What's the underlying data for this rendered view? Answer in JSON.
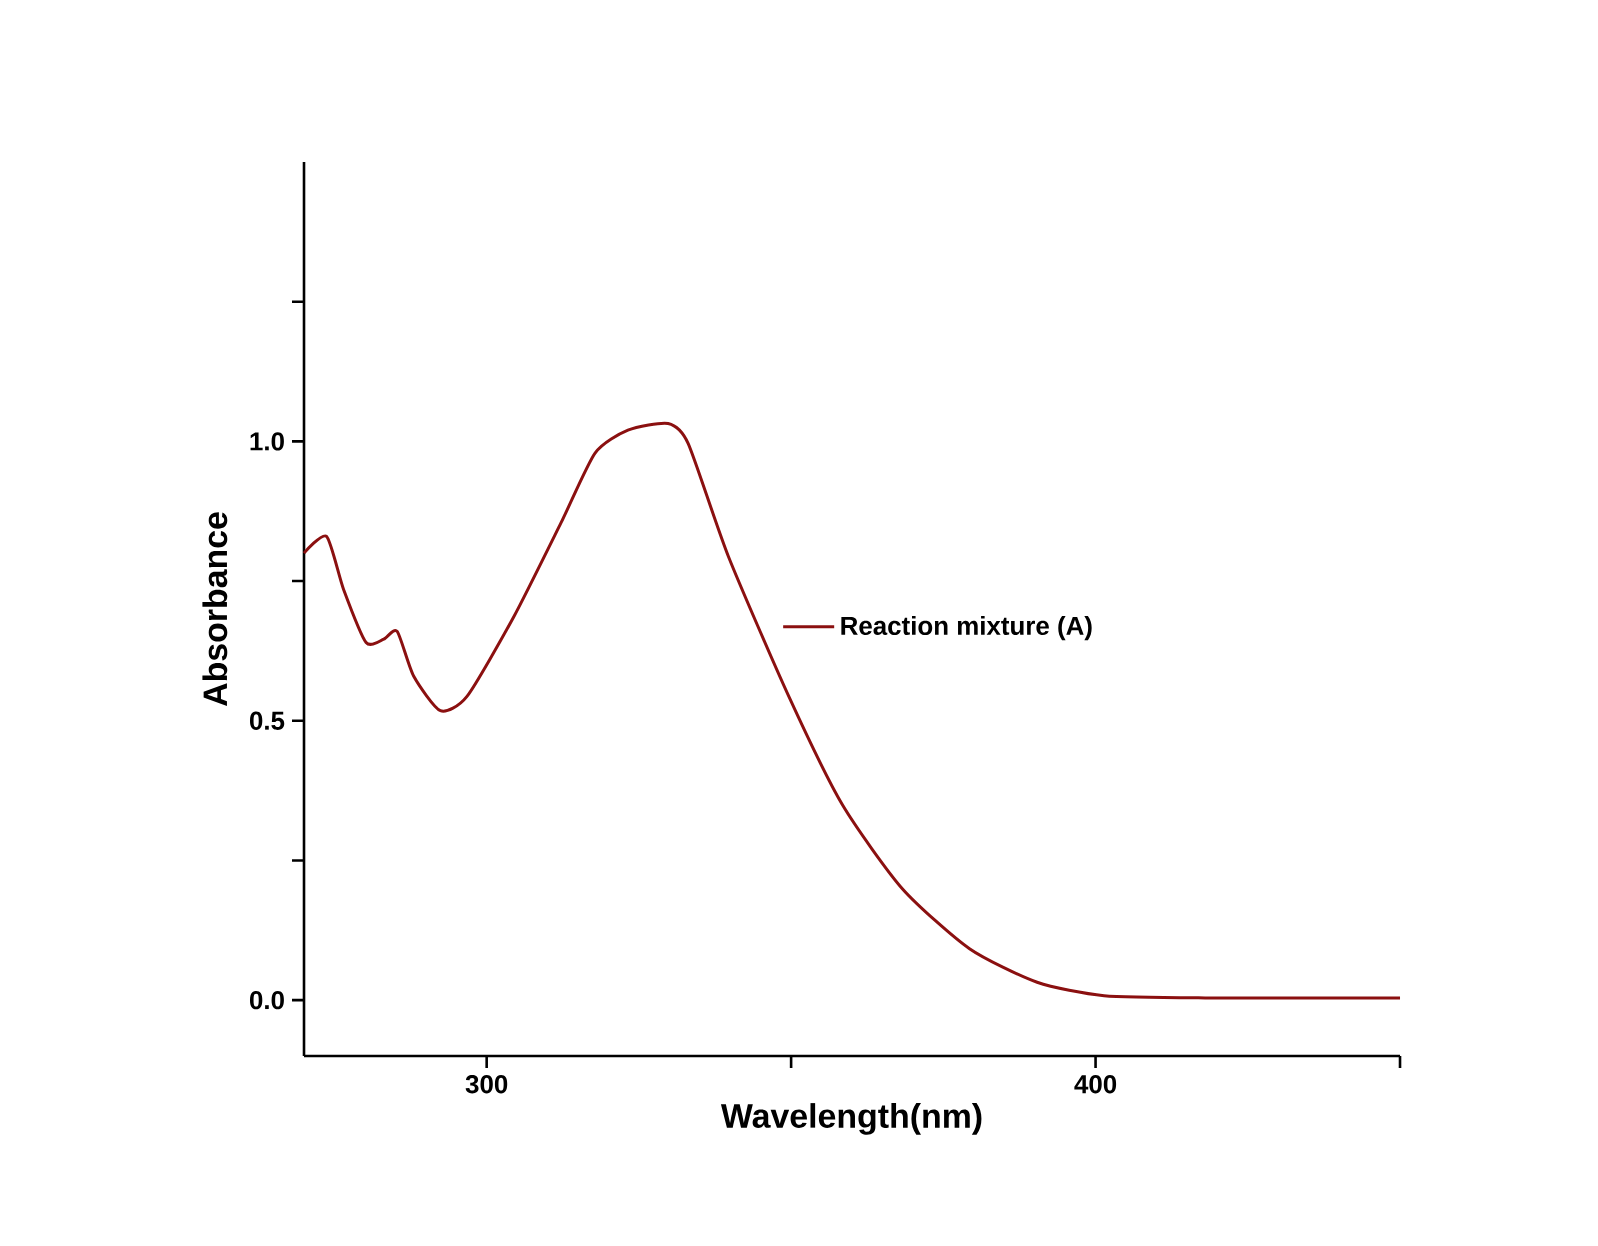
{
  "chart_data": {
    "type": "line",
    "xlabel": "Wavelength(nm)",
    "ylabel": "Absorbance",
    "xlim": [
      270,
      450
    ],
    "ylim": [
      -0.1,
      1.5
    ],
    "xticks": [
      300,
      {
        "value": 350,
        "label": null
      },
      400,
      {
        "value": 450,
        "label": null
      }
    ],
    "yticks": [
      {
        "value": 0,
        "label": "0.0"
      },
      {
        "value": 0.25,
        "label": null
      },
      {
        "value": 0.5,
        "label": "0.5"
      },
      {
        "value": 0.75,
        "label": null
      },
      {
        "value": 1,
        "label": "1.0"
      },
      {
        "value": 1.25,
        "label": null
      }
    ],
    "legend": "right",
    "grid": false,
    "marker": "none",
    "line_style": "solid",
    "series": [
      {
        "name": "Reaction mixture (A)",
        "color": "#8b1010",
        "x": [
          270,
          273.7,
          276.5,
          280.2,
          283.1,
          285.3,
          288,
          292.4,
          296.8,
          304.5,
          312.2,
          317.8,
          323.2,
          329.8,
          333.1,
          339.7,
          349.6,
          358.4,
          368.3,
          379.3,
          390.4,
          401.4,
          418,
          450
        ],
        "values": [
          0.8,
          0.83,
          0.735,
          0.64,
          0.646,
          0.66,
          0.58,
          0.518,
          0.544,
          0.687,
          0.854,
          0.979,
          1.02,
          1.032,
          0.996,
          0.794,
          0.544,
          0.35,
          0.199,
          0.092,
          0.032,
          0.008,
          0.004,
          0.004
        ]
      }
    ]
  }
}
